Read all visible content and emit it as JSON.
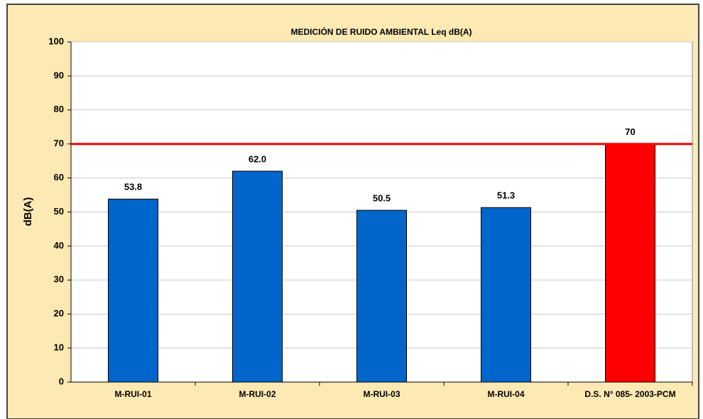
{
  "chart_data": {
    "type": "bar",
    "title": "MEDICIÓN DE RUIDO AMBIENTAL Leq dB(A)",
    "y_label": "dB(A)",
    "categories": [
      "M-RUI-01",
      "M-RUI-02",
      "M-RUI-03",
      "M-RUI-04",
      "D.S. N° 085- 2003-PCM"
    ],
    "values": [
      53.8,
      62.0,
      50.5,
      51.3,
      70
    ],
    "value_labels": [
      "53.8",
      "62.0",
      "50.5",
      "51.3",
      "70"
    ],
    "colors": [
      "#0066cc",
      "#0066cc",
      "#0066cc",
      "#0066cc",
      "#ff0000"
    ],
    "reference_line": {
      "value": 70,
      "color": "#ff0000"
    },
    "ylim": [
      0,
      100
    ],
    "yticks": [
      0,
      10,
      20,
      30,
      40,
      50,
      60,
      70,
      80,
      90,
      100
    ],
    "grid": true
  }
}
